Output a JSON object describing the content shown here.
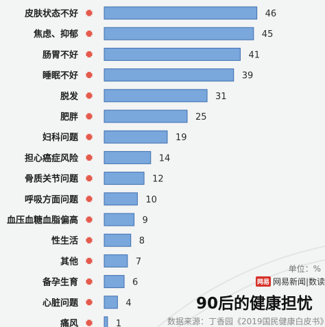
{
  "unit_label": "单位：%",
  "logo": {
    "badge": "网易",
    "text": "网易新闻|数读"
  },
  "headline": "90后的健康担忧",
  "source": "数据来源：丁香园《2019国民健康白皮书》",
  "colors": {
    "bar_fill": "#7aa7dc",
    "bar_stroke": "#3d6fb0",
    "plus": "#e45a4c",
    "background": "#f3f4f4"
  },
  "chart_data": {
    "type": "bar",
    "orientation": "horizontal",
    "categories": [
      "皮肤状态不好",
      "焦虑、抑郁",
      "肠胃不好",
      "睡眠不好",
      "脱发",
      "肥胖",
      "妇科问题",
      "担心癌症风险",
      "骨质关节问题",
      "呼吸方面问题",
      "血压血糖血脂偏高",
      "性生活",
      "其他",
      "备孕生育",
      "心脏问题",
      "痛风"
    ],
    "values": [
      46,
      45,
      41,
      39,
      31,
      25,
      19,
      14,
      12,
      10,
      9,
      8,
      7,
      6,
      4,
      1
    ],
    "unit": "%",
    "xlim": [
      0,
      50
    ],
    "grid": false,
    "legend": "none"
  }
}
